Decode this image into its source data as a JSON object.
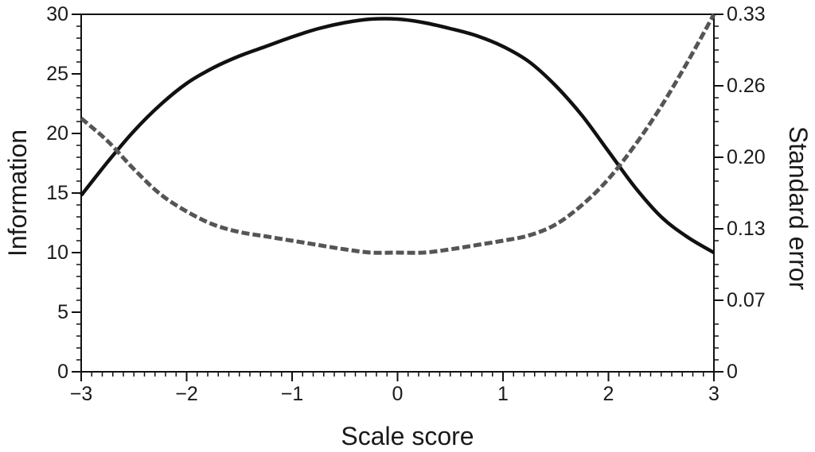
{
  "chart_data": {
    "type": "line",
    "xlabel": "Scale score",
    "ylabel": "Information",
    "y2label": "Standard error",
    "xlim": [
      -3,
      3
    ],
    "ylim": [
      0,
      30
    ],
    "y2lim": [
      0,
      0.33
    ],
    "xticks": [
      "−3",
      "−2",
      "−1",
      "0",
      "1",
      "2",
      "3"
    ],
    "xtick_values": [
      -3,
      -2,
      -1,
      0,
      1,
      2,
      3
    ],
    "yticks": [
      "0",
      "5",
      "10",
      "15",
      "20",
      "25",
      "30"
    ],
    "ytick_values": [
      0,
      5,
      10,
      15,
      20,
      25,
      30
    ],
    "y2ticks": [
      "0",
      "0.07",
      "0.13",
      "0.20",
      "0.26",
      "0.33"
    ],
    "y2tick_values": [
      0,
      0.066,
      0.132,
      0.198,
      0.264,
      0.33
    ],
    "grid": false,
    "legend": "none",
    "series": [
      {
        "axis": "left",
        "style": "solid",
        "color": "#111111",
        "x": [
          -3,
          -2.75,
          -2.5,
          -2.25,
          -2,
          -1.75,
          -1.5,
          -1.25,
          -1,
          -0.75,
          -0.5,
          -0.25,
          0,
          0.25,
          0.5,
          0.75,
          1,
          1.25,
          1.5,
          1.75,
          2,
          2.25,
          2.5,
          2.75,
          3
        ],
        "values": [
          14.8,
          17.6,
          20.2,
          22.4,
          24.2,
          25.5,
          26.5,
          27.3,
          28.1,
          28.8,
          29.3,
          29.6,
          29.6,
          29.3,
          28.8,
          28.2,
          27.3,
          26.0,
          24.0,
          21.5,
          18.5,
          15.5,
          13.0,
          11.3,
          10.0
        ]
      },
      {
        "axis": "right",
        "style": "dashed",
        "color": "#555555",
        "x": [
          -3,
          -2.75,
          -2.5,
          -2.25,
          -2,
          -1.75,
          -1.5,
          -1.25,
          -1,
          -0.75,
          -0.5,
          -0.25,
          0,
          0.25,
          0.5,
          0.75,
          1,
          1.25,
          1.5,
          1.75,
          2,
          2.25,
          2.5,
          2.75,
          3
        ],
        "values": [
          0.234,
          0.213,
          0.187,
          0.164,
          0.148,
          0.136,
          0.129,
          0.125,
          0.121,
          0.117,
          0.113,
          0.11,
          0.11,
          0.11,
          0.113,
          0.117,
          0.121,
          0.126,
          0.136,
          0.154,
          0.178,
          0.209,
          0.245,
          0.286,
          0.33
        ]
      }
    ]
  }
}
